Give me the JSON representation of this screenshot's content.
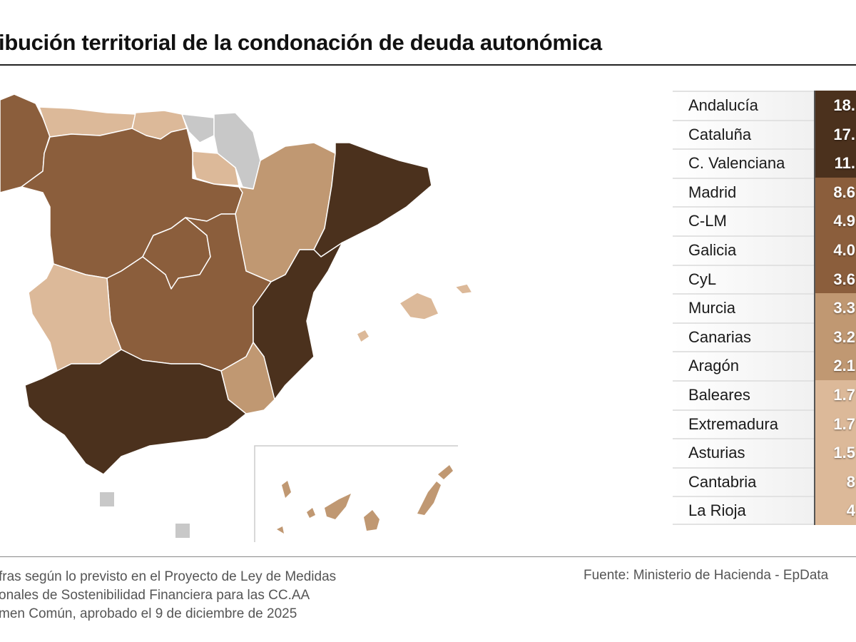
{
  "title": "ibución territorial de la condonación de deuda autonómica",
  "colors": {
    "darkest": "#4b311d",
    "brown": "#8b5e3c",
    "tan": "#c09872",
    "light": "#dcb999",
    "nodata": "#c8c8c8"
  },
  "table": [
    {
      "region": "Andalucía",
      "value": "18.",
      "color": "#4b311d"
    },
    {
      "region": "Cataluña",
      "value": "17.",
      "color": "#4b311d"
    },
    {
      "region": "C. Valenciana",
      "value": "11.",
      "color": "#4b311d"
    },
    {
      "region": "Madrid",
      "value": "8.6",
      "color": "#8b5e3c"
    },
    {
      "region": "C-LM",
      "value": "4.9",
      "color": "#8b5e3c"
    },
    {
      "region": "Galicia",
      "value": "4.0",
      "color": "#8b5e3c"
    },
    {
      "region": "CyL",
      "value": "3.6",
      "color": "#8b5e3c"
    },
    {
      "region": "Murcia",
      "value": "3.3",
      "color": "#c09872"
    },
    {
      "region": "Canarias",
      "value": "3.2",
      "color": "#c09872"
    },
    {
      "region": "Aragón",
      "value": "2.1",
      "color": "#c09872"
    },
    {
      "region": "Baleares",
      "value": "1.7",
      "color": "#dcb999"
    },
    {
      "region": "Extremadura",
      "value": "1.7",
      "color": "#dcb999"
    },
    {
      "region": "Asturias",
      "value": "1.5",
      "color": "#dcb999"
    },
    {
      "region": "Cantabria",
      "value": "8",
      "color": "#dcb999"
    },
    {
      "region": "La Rioja",
      "value": "4",
      "color": "#dcb999"
    }
  ],
  "notes": [
    "fras según lo previsto en el Proyecto de Ley de Medidas",
    "onales de Sostenibilidad Financiera para las CC.AA",
    "men Común, aprobado el 9 de diciembre de 2025"
  ],
  "source": "Fuente: Ministerio de Hacienda - EpData"
}
